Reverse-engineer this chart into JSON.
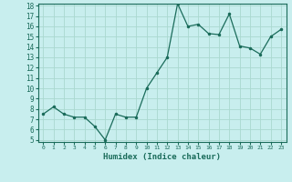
{
  "x": [
    0,
    1,
    2,
    3,
    4,
    5,
    6,
    7,
    8,
    9,
    10,
    11,
    12,
    13,
    14,
    15,
    16,
    17,
    18,
    19,
    20,
    21,
    22,
    23
  ],
  "y": [
    7.5,
    8.2,
    7.5,
    7.2,
    7.2,
    6.3,
    5.0,
    7.5,
    7.2,
    7.2,
    10.0,
    11.5,
    13.0,
    18.2,
    16.0,
    16.2,
    15.3,
    15.2,
    17.2,
    14.1,
    13.9,
    13.3,
    15.0,
    15.7
  ],
  "xlabel": "Humidex (Indice chaleur)",
  "line_color": "#1a6b5a",
  "marker_color": "#1a6b5a",
  "bg_color": "#c8eeee",
  "grid_color": "#aad8d0",
  "ylim": [
    5,
    18
  ],
  "xlim": [
    -0.5,
    23.5
  ],
  "yticks": [
    5,
    6,
    7,
    8,
    9,
    10,
    11,
    12,
    13,
    14,
    15,
    16,
    17,
    18
  ],
  "xticks": [
    0,
    1,
    2,
    3,
    4,
    5,
    6,
    7,
    8,
    9,
    10,
    11,
    12,
    13,
    14,
    15,
    16,
    17,
    18,
    19,
    20,
    21,
    22,
    23
  ]
}
